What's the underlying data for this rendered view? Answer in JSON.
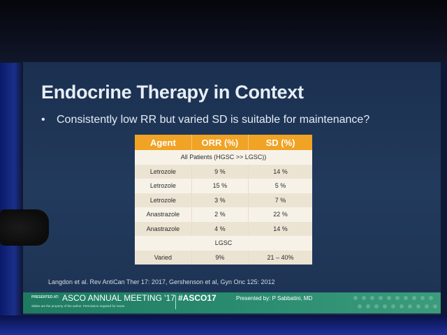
{
  "slide": {
    "title": "Endocrine Therapy in Context",
    "bullet": "Consistently low RR but varied SD is suitable for maintenance?"
  },
  "table": {
    "headers": [
      "Agent",
      "ORR (%)",
      "SD (%)"
    ],
    "section_all": "All Patients (HGSC >> LGSC))",
    "rows_all": [
      {
        "agent": "Letrozole",
        "orr": "9 %",
        "sd": "14 %"
      },
      {
        "agent": "Letrozole",
        "orr": "15 %",
        "sd": "5 %"
      },
      {
        "agent": "Letrozole",
        "orr": "3 %",
        "sd": "7 %"
      },
      {
        "agent": "Anastrazole",
        "orr": "2 %",
        "sd": "22 %"
      },
      {
        "agent": "Anastrazole",
        "orr": "4 %",
        "sd": "14 %"
      }
    ],
    "section_lgsc": "LGSC",
    "rows_lgsc": [
      {
        "agent": "Varied",
        "orr": "9%",
        "sd": "21 – 40%"
      }
    ]
  },
  "citation": "Langdon et al.  Rev AntiCan Ther 17: 2017, Gershenson et al, Gyn Onc 125: 2012",
  "banner": {
    "presented_at": "PRESENTED AT:",
    "meeting": "ASCO ANNUAL MEETING '17",
    "hashtag": "#ASCO17",
    "presenter": "Presented by: P Sabbatini, MD",
    "note": "Slides are the property of the author. Permission required for reuse."
  },
  "colors": {
    "header_orange": "#f0a324",
    "banner_green": "#2a8c70",
    "slide_blue": "#223a5c"
  }
}
